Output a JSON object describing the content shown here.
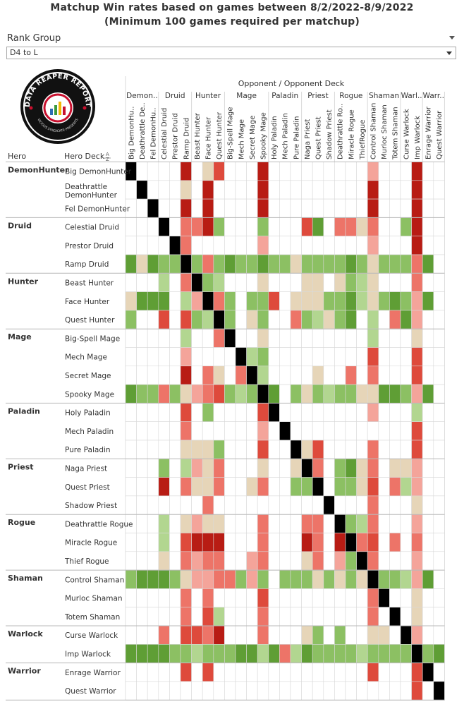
{
  "title_line1": "Matchup Win rates based on games between 8/2/2022-8/9/2022",
  "title_line2": "(Minimum 100 games required per matchup)",
  "filter": {
    "label": "Rank Group",
    "value": "D4 to L"
  },
  "logo": {
    "top_text": "DATA REAPER REPORT",
    "bottom_text": "VICIOUS SYNDICATE PRESENTS"
  },
  "colors": {
    "strong_win": "#3f7f1e",
    "win": "#5f9e35",
    "slight_win": "#8cc063",
    "light_win": "#b2d690",
    "neutral": "#e6d5b8",
    "light_loss": "#f4a49a",
    "slight_loss": "#ed7468",
    "loss": "#de4a3c",
    "strong_loss": "#b81c14",
    "mirror": "#000000",
    "empty": "#ffffff",
    "grid": "#d9d9d9",
    "header_text": "#333333"
  },
  "chart_data": {
    "type": "heatmap",
    "column_header_title": "Opponent / Opponent Deck",
    "row_header_hero": "Hero",
    "row_header_deck": "Hero Deck",
    "sort_icon": "sort-icon",
    "hero_groups": [
      {
        "hero": "DemonHunter",
        "col_label": "Demon..",
        "decks": [
          "Big DemonHunter",
          "Deathrattle DemonHunter",
          "Fel DemonHunter"
        ],
        "col_decks": [
          "Big DemonHu..",
          "Deathrattle De..",
          "Fel DemonHu.."
        ]
      },
      {
        "hero": "Druid",
        "col_label": "Druid",
        "decks": [
          "Celestial Druid",
          "Prestor Druid",
          "Ramp Druid"
        ],
        "col_decks": [
          "Celestial Druid",
          "Prestor Druid",
          "Ramp Druid"
        ]
      },
      {
        "hero": "Hunter",
        "col_label": "Hunter",
        "decks": [
          "Beast Hunter",
          "Face Hunter",
          "Quest Hunter"
        ],
        "col_decks": [
          "Beast Hunter",
          "Face Hunter",
          "Quest Hunter"
        ]
      },
      {
        "hero": "Mage",
        "col_label": "Mage",
        "decks": [
          "Big-Spell Mage",
          "Mech Mage",
          "Secret Mage",
          "Spooky Mage"
        ],
        "col_decks": [
          "Big-Spell Mage",
          "Mech Mage",
          "Secret Mage",
          "Spooky Mage"
        ]
      },
      {
        "hero": "Paladin",
        "col_label": "Paladin",
        "decks": [
          "Holy Paladin",
          "Mech Paladin",
          "Pure Paladin"
        ],
        "col_decks": [
          "Holy Paladin",
          "Mech Paladin",
          "Pure Paladin"
        ]
      },
      {
        "hero": "Priest",
        "col_label": "Priest",
        "decks": [
          "Naga Priest",
          "Quest Priest",
          "Shadow Priest"
        ],
        "col_decks": [
          "Naga Priest",
          "Quest Priest",
          "Shadow Priest"
        ]
      },
      {
        "hero": "Rogue",
        "col_label": "Rogue",
        "decks": [
          "Deathrattle Rogue",
          "Miracle Rogue",
          "Thief Rogue"
        ],
        "col_decks": [
          "Deathrattle Ro..",
          "Miracle Rogue",
          "ThiefRogue"
        ]
      },
      {
        "hero": "Shaman",
        "col_label": "Shaman",
        "decks": [
          "Control Shaman",
          "Murloc Shaman",
          "Totem Shaman"
        ],
        "col_decks": [
          "Control Shaman",
          "Murloc Shaman",
          "Totem Shaman"
        ]
      },
      {
        "hero": "Warlock",
        "col_label": "Warl..",
        "decks": [
          "Curse Warlock",
          "Imp Warlock"
        ],
        "col_decks": [
          "Curse Warlock",
          "Imp Warlock"
        ]
      },
      {
        "hero": "Warrior",
        "col_label": "Warr..",
        "decks": [
          "Enrage Warrior",
          "Quest Warrior"
        ],
        "col_decks": [
          "Enrage Warrior",
          "Quest Warrior"
        ]
      }
    ],
    "color_scale_legend": {
      "4": "strong_win",
      "3": "win",
      "2": "slight_win",
      "1": "light_win",
      "0": "neutral",
      "-1": "light_loss",
      "-2": "slight_loss",
      "-3": "loss",
      "-4": "strong_loss",
      "M": "mirror",
      "null": "empty"
    },
    "matrix": [
      [
        "M",
        null,
        null,
        null,
        null,
        -4,
        null,
        0,
        -3,
        null,
        null,
        null,
        -4,
        null,
        null,
        null,
        null,
        null,
        null,
        null,
        null,
        null,
        -1,
        null,
        null,
        null,
        -4,
        null,
        null
      ],
      [
        null,
        "M",
        null,
        null,
        null,
        0,
        null,
        -4,
        null,
        null,
        null,
        null,
        -4,
        null,
        null,
        null,
        null,
        null,
        null,
        null,
        null,
        null,
        -4,
        null,
        null,
        null,
        -4,
        null,
        null
      ],
      [
        null,
        null,
        "M",
        null,
        null,
        -4,
        null,
        -4,
        null,
        null,
        null,
        null,
        -4,
        null,
        null,
        null,
        null,
        null,
        null,
        null,
        null,
        null,
        -4,
        null,
        null,
        null,
        -4,
        null,
        null
      ],
      [
        null,
        null,
        null,
        "M",
        null,
        -2,
        -2,
        -4,
        2,
        null,
        null,
        null,
        2,
        null,
        null,
        null,
        -3,
        3,
        null,
        -2,
        -2,
        0,
        -2,
        null,
        null,
        2,
        -4,
        null,
        null
      ],
      [
        null,
        null,
        null,
        null,
        "M",
        -2,
        null,
        null,
        null,
        null,
        null,
        null,
        -1,
        null,
        null,
        null,
        null,
        null,
        null,
        null,
        null,
        null,
        -1,
        null,
        null,
        null,
        -4,
        null,
        null
      ],
      [
        3,
        0,
        3,
        2,
        2,
        "M",
        2,
        -2,
        2,
        3,
        2,
        2,
        3,
        2,
        2,
        0,
        2,
        2,
        2,
        2,
        3,
        2,
        0,
        2,
        2,
        2,
        -2,
        3,
        null
      ],
      [
        null,
        null,
        null,
        1,
        null,
        -2,
        "M",
        2,
        1,
        null,
        null,
        null,
        0,
        null,
        null,
        null,
        0,
        0,
        null,
        0,
        2,
        1,
        0,
        null,
        null,
        null,
        -2,
        null,
        null
      ],
      [
        0,
        3,
        3,
        3,
        null,
        1,
        -1,
        "M",
        -2,
        2,
        null,
        2,
        2,
        -3,
        null,
        0,
        0,
        0,
        2,
        2,
        3,
        1,
        0,
        2,
        3,
        2,
        -1,
        3,
        null
      ],
      [
        2,
        null,
        null,
        -3,
        null,
        -3,
        2,
        1,
        "M",
        2,
        null,
        0,
        2,
        null,
        null,
        -2,
        2,
        1,
        0,
        2,
        3,
        null,
        1,
        null,
        -2,
        3,
        -1,
        null,
        null
      ],
      [
        null,
        null,
        null,
        null,
        null,
        1,
        null,
        null,
        -2,
        "M",
        null,
        null,
        0,
        null,
        null,
        null,
        null,
        null,
        null,
        null,
        null,
        null,
        1,
        null,
        null,
        null,
        0,
        null,
        null
      ],
      [
        null,
        null,
        null,
        null,
        null,
        -1,
        null,
        null,
        null,
        null,
        "M",
        1,
        2,
        null,
        null,
        null,
        null,
        null,
        null,
        null,
        null,
        null,
        -3,
        null,
        null,
        null,
        -3,
        null,
        null
      ],
      [
        null,
        null,
        null,
        null,
        null,
        -4,
        null,
        -2,
        0,
        null,
        -2,
        "M",
        1,
        null,
        null,
        null,
        null,
        0,
        null,
        null,
        -2,
        null,
        -2,
        null,
        null,
        null,
        -3,
        null,
        null
      ],
      [
        3,
        2,
        2,
        -2,
        2,
        0,
        -1,
        -2,
        -3,
        2,
        1,
        2,
        "M",
        3,
        null,
        2,
        0,
        2,
        1,
        2,
        2,
        0,
        0,
        3,
        3,
        2,
        -1,
        3,
        null
      ],
      [
        null,
        null,
        null,
        null,
        null,
        -3,
        null,
        2,
        null,
        null,
        null,
        null,
        -3,
        "M",
        null,
        null,
        null,
        null,
        null,
        null,
        null,
        null,
        -1,
        null,
        null,
        null,
        1,
        null,
        null
      ],
      [
        null,
        null,
        null,
        null,
        null,
        -2,
        null,
        null,
        null,
        null,
        null,
        null,
        -1,
        null,
        "M",
        null,
        null,
        null,
        null,
        null,
        null,
        null,
        null,
        null,
        null,
        null,
        -3,
        null,
        null
      ],
      [
        null,
        null,
        null,
        null,
        null,
        0,
        0,
        0,
        2,
        null,
        null,
        null,
        -3,
        null,
        null,
        "M",
        0,
        -3,
        null,
        null,
        null,
        null,
        -2,
        null,
        null,
        null,
        -3,
        null,
        null
      ],
      [
        null,
        null,
        null,
        2,
        null,
        1,
        -1,
        0,
        -2,
        null,
        null,
        null,
        0,
        null,
        null,
        0,
        "M",
        -2,
        null,
        2,
        3,
        0,
        -2,
        null,
        0,
        0,
        -1,
        null,
        null
      ],
      [
        null,
        null,
        null,
        -4,
        null,
        -2,
        0,
        0,
        -2,
        null,
        null,
        0,
        -2,
        null,
        null,
        2,
        2,
        "M",
        null,
        2,
        2,
        0,
        -3,
        null,
        -2,
        1,
        -1,
        null,
        null
      ],
      [
        null,
        null,
        null,
        null,
        null,
        null,
        null,
        -2,
        null,
        null,
        null,
        null,
        null,
        null,
        null,
        null,
        null,
        null,
        "M",
        null,
        null,
        null,
        -2,
        null,
        null,
        null,
        0,
        null,
        null
      ],
      [
        null,
        null,
        null,
        1,
        null,
        0,
        -1,
        0,
        0,
        null,
        null,
        null,
        -2,
        null,
        null,
        null,
        -2,
        -2,
        null,
        "M",
        2,
        1,
        -2,
        null,
        null,
        null,
        -1,
        null,
        null
      ],
      [
        null,
        null,
        null,
        1,
        null,
        -3,
        -4,
        -4,
        -4,
        null,
        null,
        null,
        -2,
        null,
        null,
        null,
        -4,
        -2,
        null,
        -4,
        "M",
        -2,
        -3,
        null,
        -2,
        null,
        -2,
        null,
        null
      ],
      [
        null,
        null,
        null,
        0,
        null,
        -2,
        -1,
        -2,
        -2,
        null,
        null,
        -1,
        -2,
        null,
        null,
        null,
        0,
        -2,
        null,
        -1,
        2,
        "M",
        -2,
        null,
        null,
        null,
        -1,
        null,
        null
      ],
      [
        2,
        3,
        3,
        3,
        2,
        0,
        -1,
        -1,
        -2,
        -2,
        2,
        -1,
        2,
        null,
        2,
        2,
        2,
        0,
        2,
        0,
        2,
        0,
        "M",
        2,
        2,
        1,
        -1,
        3,
        null
      ],
      [
        null,
        null,
        null,
        null,
        null,
        -2,
        null,
        -2,
        null,
        null,
        null,
        null,
        -3,
        null,
        null,
        null,
        null,
        null,
        null,
        null,
        null,
        null,
        -2,
        "M",
        null,
        null,
        0,
        null,
        null
      ],
      [
        null,
        null,
        null,
        null,
        null,
        -2,
        null,
        -3,
        1,
        null,
        null,
        null,
        -2,
        null,
        null,
        null,
        null,
        null,
        null,
        null,
        null,
        null,
        -2,
        null,
        "M",
        null,
        0,
        null,
        null
      ],
      [
        null,
        null,
        null,
        -2,
        null,
        -3,
        -3,
        -2,
        -4,
        null,
        null,
        null,
        -2,
        null,
        null,
        null,
        0,
        2,
        null,
        2,
        null,
        null,
        0,
        0,
        null,
        "M",
        -1,
        null,
        null
      ],
      [
        3,
        3,
        3,
        3,
        2,
        2,
        1,
        2,
        2,
        2,
        3,
        3,
        1,
        3,
        -2,
        1,
        3,
        2,
        2,
        2,
        2,
        1,
        2,
        2,
        2,
        2,
        "M",
        2,
        3
      ],
      [
        null,
        null,
        null,
        null,
        null,
        -3,
        null,
        -3,
        null,
        null,
        null,
        null,
        null,
        null,
        null,
        null,
        null,
        null,
        null,
        null,
        null,
        null,
        -3,
        null,
        null,
        null,
        -3,
        "M",
        null
      ],
      [
        null,
        null,
        null,
        null,
        null,
        null,
        null,
        null,
        null,
        null,
        null,
        null,
        null,
        null,
        null,
        null,
        null,
        null,
        null,
        null,
        null,
        null,
        null,
        null,
        null,
        null,
        -3,
        null,
        "M"
      ]
    ]
  }
}
